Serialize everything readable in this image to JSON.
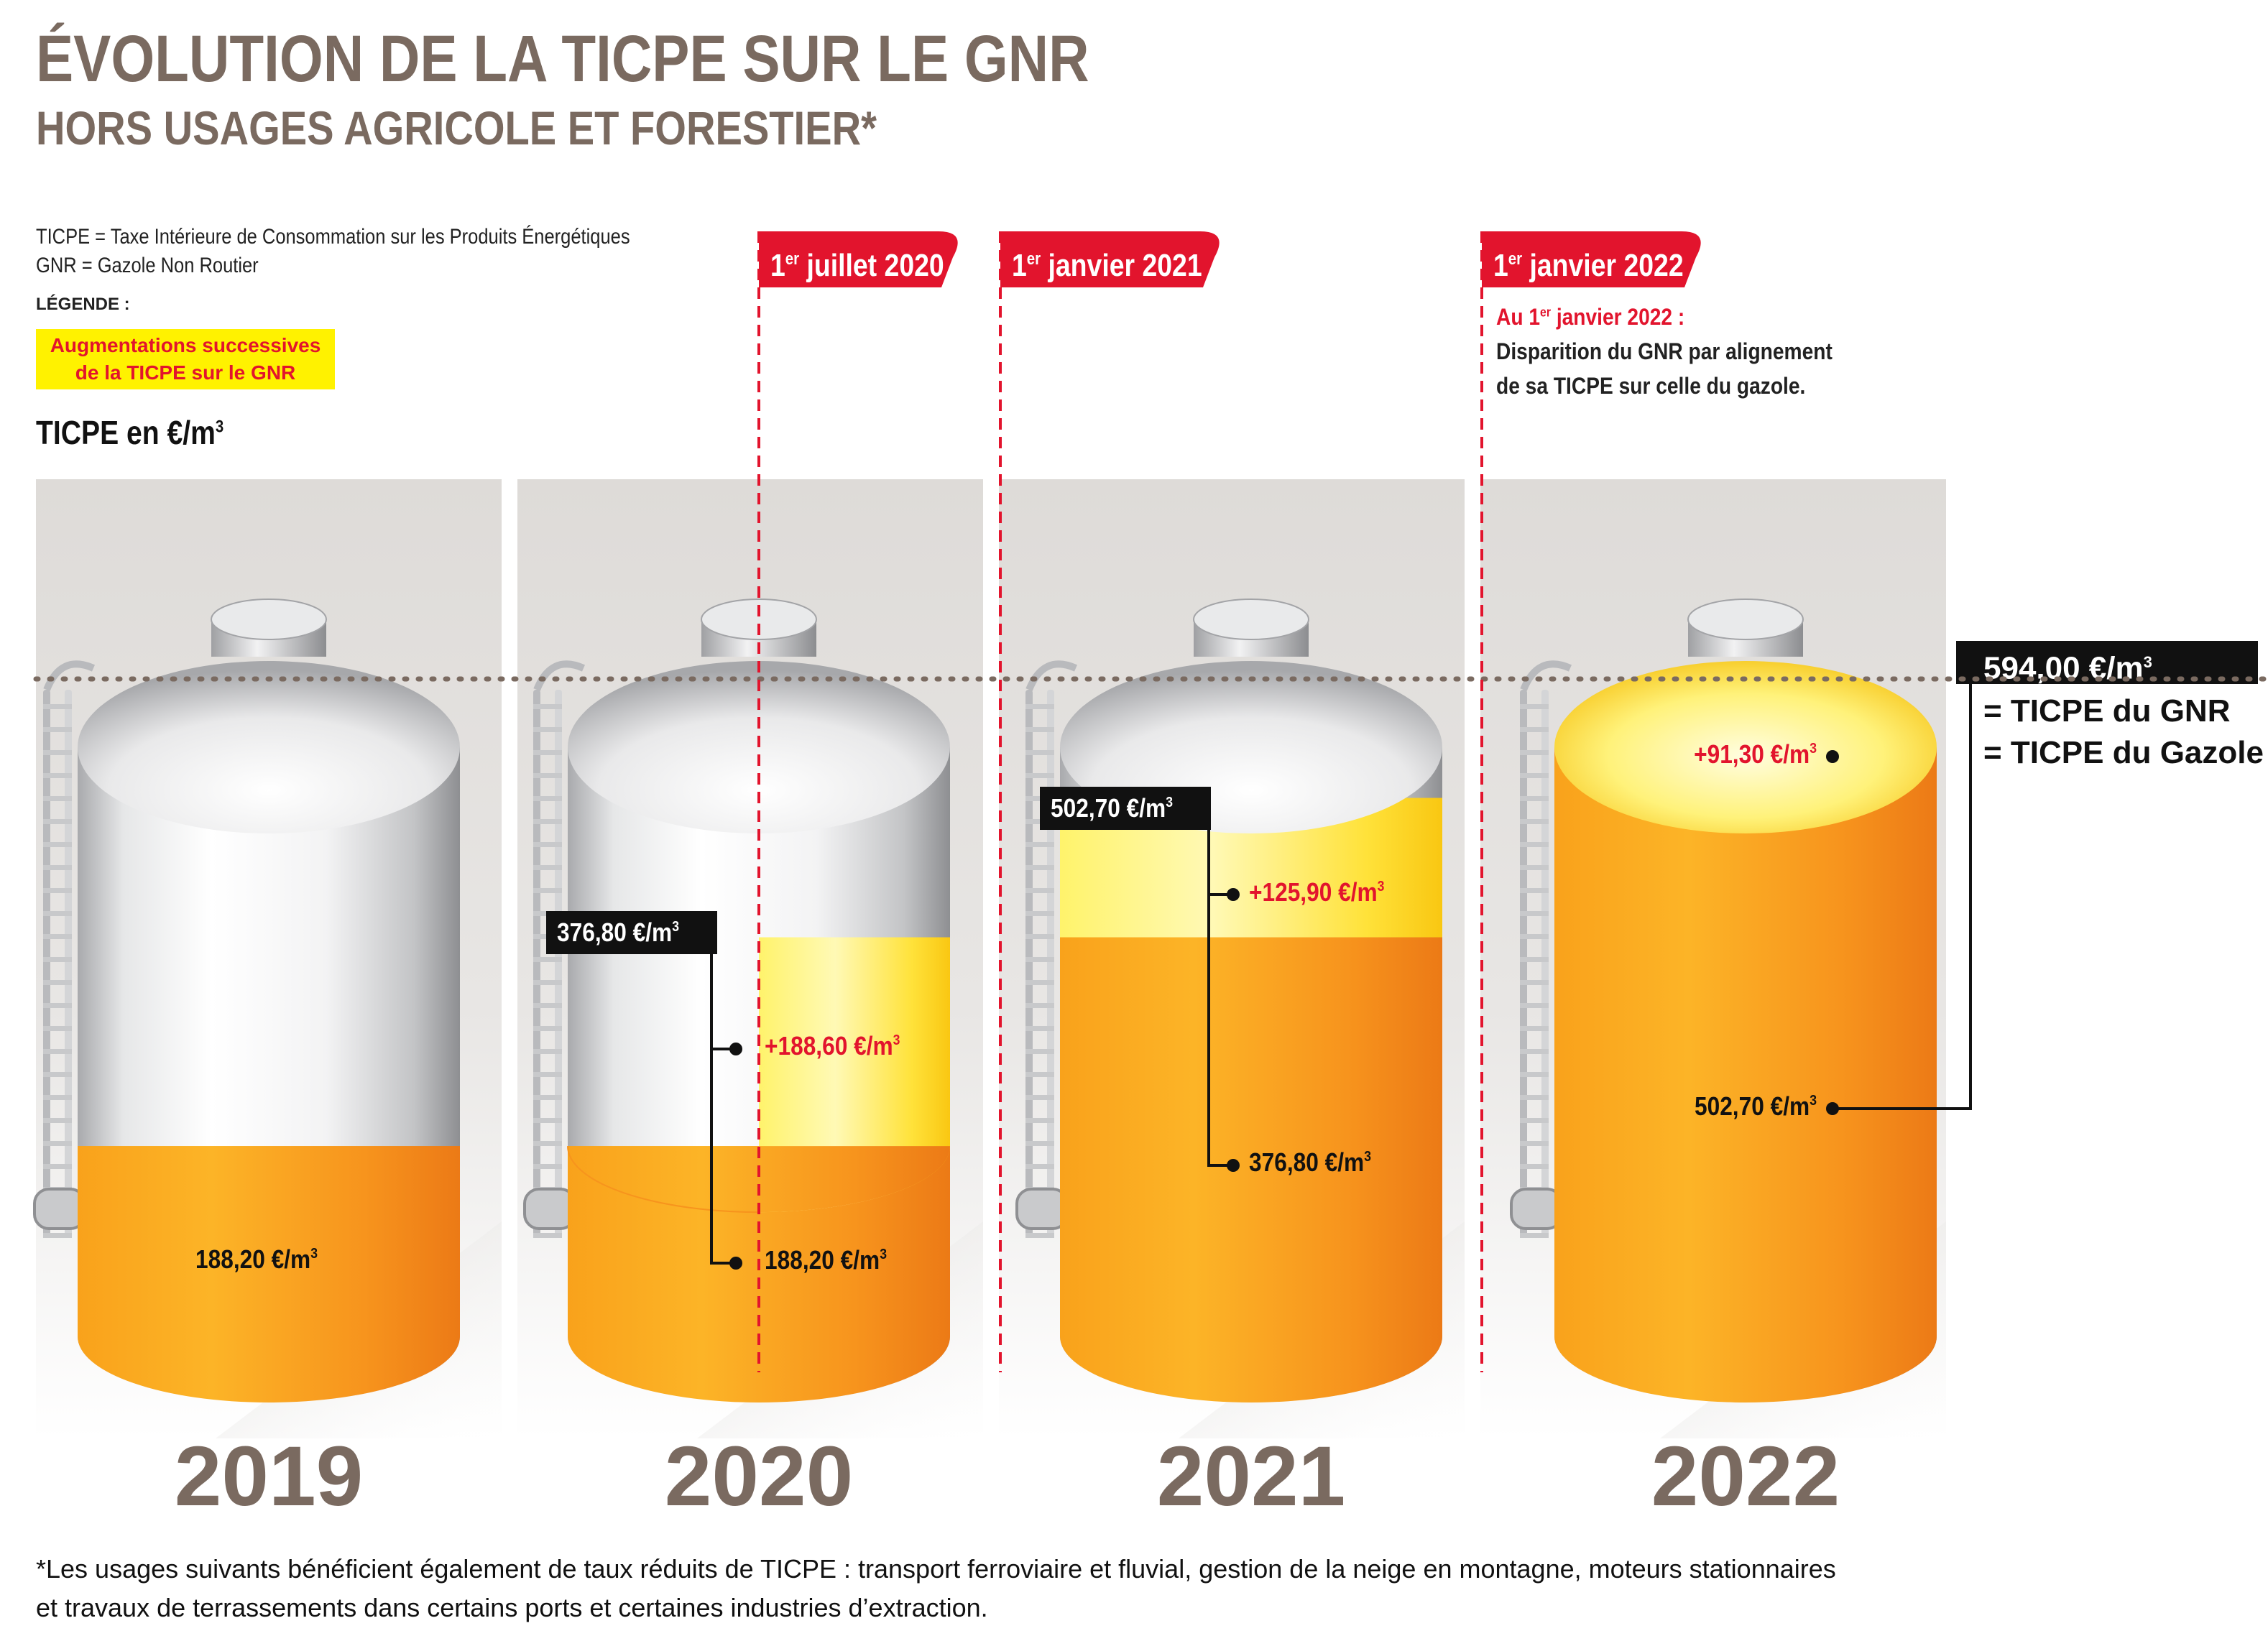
{
  "header": {
    "title": "ÉVOLUTION DE LA TICPE SUR LE GNR",
    "subtitle": "HORS USAGES AGRICOLE ET FORESTIER*"
  },
  "definitions": {
    "ticpe": "TICPE = Taxe Intérieure de Consommation sur les Produits Énergétiques",
    "gnr": "GNR = Gazole Non Routier"
  },
  "legend": {
    "title": "LÉGENDE :",
    "line1": "Augmentations successives",
    "line2": "de la TICPE sur le GNR"
  },
  "unit_label": "TICPE en €/m",
  "dates": {
    "d1": {
      "prefix": "1",
      "sup": "er",
      "rest": " juillet 2020"
    },
    "d2": {
      "prefix": "1",
      "sup": "er",
      "rest": " janvier 2021"
    },
    "d3": {
      "prefix": "1",
      "sup": "er",
      "rest": " janvier 2022"
    }
  },
  "note": {
    "head_prefix": "Au 1",
    "head_sup": "er",
    "head_rest": " janvier 2022 :",
    "line1": "Disparition du GNR par alignement",
    "line2": "de sa TICPE sur celle du gazole."
  },
  "right_box": {
    "value": "594,00 €/m",
    "eq1": "= TICPE du GNR",
    "eq2": "= TICPE du Gazole"
  },
  "footnote": {
    "line1": "*Les usages suivants bénéficient également de taux réduits de TICPE : transport ferroviaire et fluvial, gestion de la neige en montagne, moteurs stationnaires",
    "line2": "et travaux de terrassements dans certains ports et certaines industries d’extraction."
  },
  "colors": {
    "title": "#7a6a60",
    "accent_red": "#e2142d",
    "orange": "#f7941d",
    "yellow": "#fff200",
    "panel": "#e6e3e0"
  },
  "chart_data": {
    "type": "bar",
    "title": "ÉVOLUTION DE LA TICPE SUR LE GNR",
    "ylabel": "TICPE en €/m³",
    "ylim": [
      0,
      594
    ],
    "categories": [
      "2019",
      "2020",
      "2021",
      "2022"
    ],
    "reference_line": {
      "value": 594.0,
      "label": "594,00 €/m³"
    },
    "tanks": [
      {
        "year": "2019",
        "base": 188.2,
        "increase": null,
        "total": 188.2,
        "base_label": "188,20 €/m",
        "increase_label": "",
        "total_label": ""
      },
      {
        "year": "2020",
        "base": 188.2,
        "increase": 188.6,
        "total": 376.8,
        "base_label": "188,20 €/m",
        "increase_label": "+188,60 €/m",
        "total_label": "376,80 €/m"
      },
      {
        "year": "2021",
        "base": 376.8,
        "increase": 125.9,
        "total": 502.7,
        "base_label": "376,80 €/m",
        "increase_label": "+125,90 €/m",
        "total_label": "502,70 €/m"
      },
      {
        "year": "2022",
        "base": 502.7,
        "increase": 91.3,
        "total": 594.0,
        "base_label": "502,70 €/m",
        "increase_label": "+91,30 €/m",
        "total_label": ""
      }
    ]
  }
}
